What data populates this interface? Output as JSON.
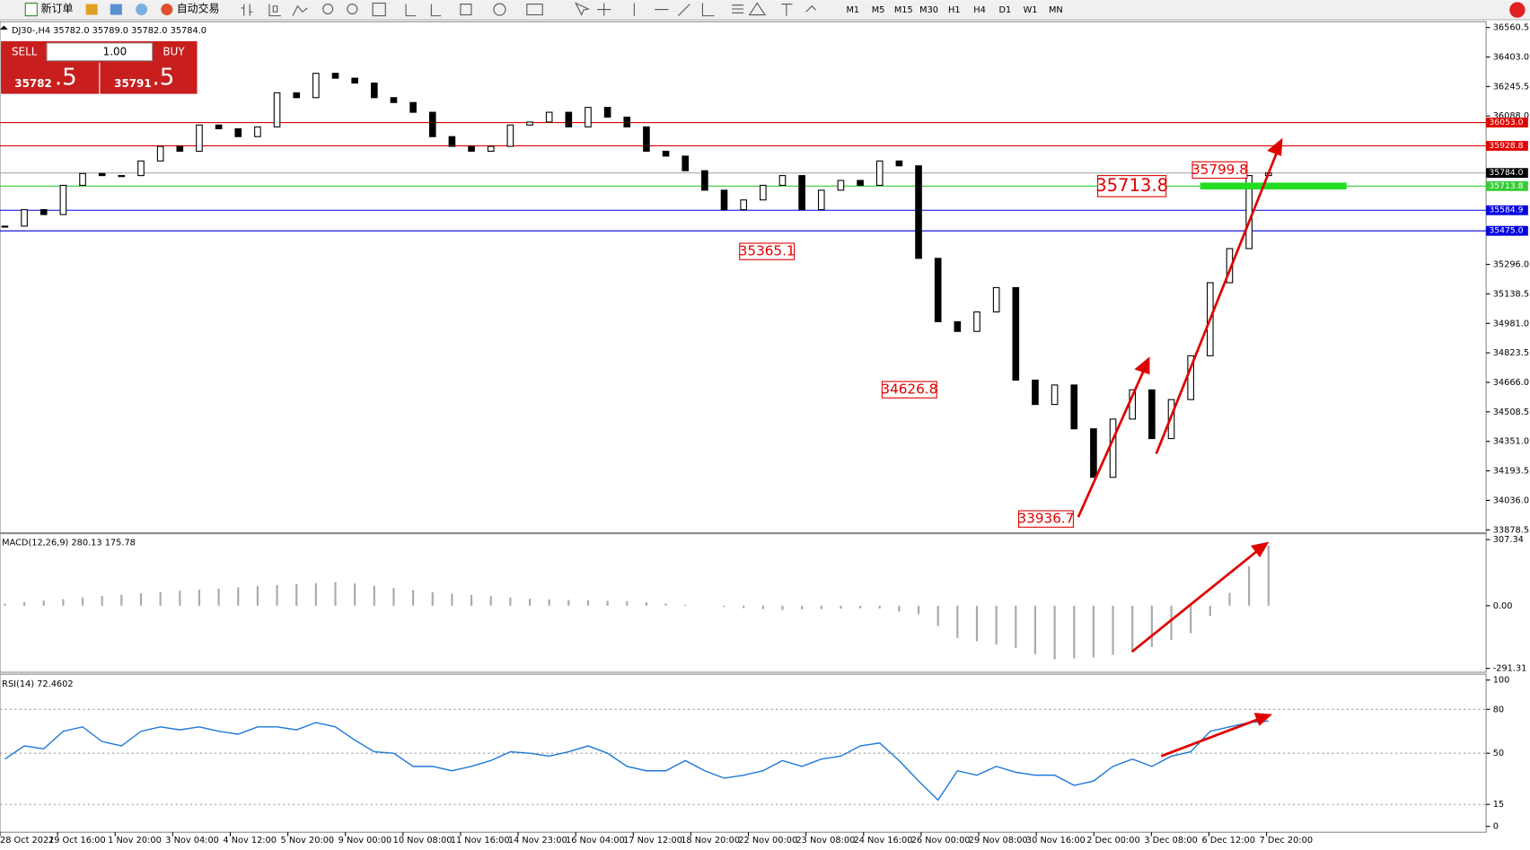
{
  "toolbar": {
    "new_order": "新订单",
    "auto_trading": "自动交易",
    "timeframes": [
      "M1",
      "M5",
      "M15",
      "M30",
      "H1",
      "H4",
      "D1",
      "W1",
      "MN"
    ]
  },
  "trade_panel": {
    "sell": "SELL",
    "lot": "1.00",
    "buy": "BUY",
    "sell_big": "35782",
    "sell_small": ".5",
    "buy_big": "35791",
    "buy_small": ".5"
  },
  "chart_data": [
    {
      "type": "candlestick",
      "title": "DJ30-,H4  35782.0 35789.0 35782.0 35784.0",
      "x_labels": [
        "28 Oct 2021",
        "29 Oct 16:00",
        "1 Nov 20:00",
        "3 Nov 04:00",
        "4 Nov 12:00",
        "5 Nov 20:00",
        "9 Nov 00:00",
        "10 Nov 08:00",
        "11 Nov 16:00",
        "14 Nov 23:00",
        "16 Nov 04:00",
        "17 Nov 12:00",
        "18 Nov 20:00",
        "22 Nov 00:00",
        "23 Nov 08:00",
        "24 Nov 16:00",
        "26 Nov 00:00",
        "29 Nov 08:00",
        "30 Nov 16:00",
        "2 Dec 00:00",
        "3 Dec 08:00",
        "6 Dec 12:00",
        "7 Dec 20:00"
      ],
      "values": [
        35500,
        35588,
        35562,
        35718,
        35781,
        35770,
        35770,
        35848,
        35926,
        35900,
        36040,
        36020,
        35978,
        36030,
        36212,
        36186,
        36316,
        36290,
        36264,
        36186,
        36160,
        36108,
        35978,
        35926,
        35900,
        35926,
        36040,
        36056,
        36108,
        36030,
        36134,
        36082,
        36030,
        35900,
        35874,
        35796,
        35692,
        35588,
        35640,
        35718,
        35770,
        35588,
        35692,
        35744,
        35718,
        35848,
        35822,
        35328,
        34990,
        34938,
        35042,
        35172,
        34678,
        34548,
        34652,
        34418,
        34159,
        34470,
        34626,
        34366,
        34574,
        34808,
        35198,
        35380,
        35770,
        35784
      ],
      "ylim": [
        33878.5,
        36560.5
      ],
      "yticks": [
        36560.5,
        {
          "value": 36403,
          "label": "36403.0"
        },
        36245.5,
        {
          "value": 36088,
          "label": "36088.0"
        },
        {
          "value": 35296,
          "label": "35296.0"
        },
        35138.5,
        {
          "value": 34981,
          "label": "34981.0"
        },
        34823.5,
        {
          "value": 34666,
          "label": "34666.0"
        },
        34508.5,
        {
          "value": 34351,
          "label": "34351.0"
        },
        34193.5,
        {
          "value": 34036,
          "label": "34036.0"
        },
        33878.5
      ],
      "levels": [
        {
          "value": 36053,
          "label": "36053.0",
          "color": "#e00000"
        },
        {
          "value": 35928.8,
          "color": "#e00000"
        },
        {
          "value": 35784,
          "label": "35784.0",
          "color": "#000000"
        },
        {
          "value": 35713.8,
          "color": "#33cc33"
        },
        {
          "value": 35584.9,
          "color": "#0000e0"
        },
        {
          "value": 35475,
          "label": "35475.0",
          "color": "#0000e0"
        }
      ],
      "annotations": [
        35365.1,
        34626.8,
        33936.7,
        35713.8,
        35799.8
      ]
    },
    {
      "type": "bar",
      "title": "MACD(12,26,9) 280.13 175.78",
      "values": [
        10,
        17,
        24,
        31,
        38,
        45,
        51,
        58,
        64,
        69,
        75,
        80,
        85,
        91,
        96,
        101,
        105,
        109,
        103,
        93,
        83,
        73,
        63,
        56,
        50,
        44,
        38,
        32,
        29,
        27,
        25,
        23,
        21,
        16,
        10,
        4,
        -1,
        -6,
        -11,
        -16,
        -20,
        -18,
        -16,
        -14,
        -12,
        -13,
        -27,
        -40,
        -95,
        -150,
        -165,
        -181,
        -196,
        -225,
        -249,
        -245,
        -241,
        -228,
        -212,
        -192,
        -160,
        -128,
        -48,
        60,
        183,
        280
      ],
      "ylim": [
        -291.31,
        307.34
      ],
      "yticks": [
        307.34,
        {
          "value": 0,
          "label": "0.00"
        },
        -291.31
      ],
      "color": "#aaaaaa"
    },
    {
      "type": "line",
      "title": "RSI(14) 72.4602",
      "values": [
        46,
        55,
        53,
        65,
        68,
        58,
        55,
        65,
        68,
        66,
        68,
        65,
        63,
        68,
        68,
        66,
        71,
        68,
        59,
        51,
        50,
        41,
        41,
        38,
        41,
        45,
        51,
        50,
        48,
        51,
        55,
        50,
        41,
        38,
        38,
        45,
        38,
        33,
        35,
        38,
        45,
        41,
        46,
        48,
        55,
        57,
        45,
        31,
        18,
        38,
        35,
        41,
        37,
        35,
        35,
        28,
        31,
        41,
        46,
        41,
        48,
        51,
        65,
        68,
        71,
        72
      ],
      "ylim": [
        0,
        100
      ],
      "yticks": [
        100,
        80,
        50,
        15,
        0
      ],
      "color": "#1e78d8"
    }
  ]
}
